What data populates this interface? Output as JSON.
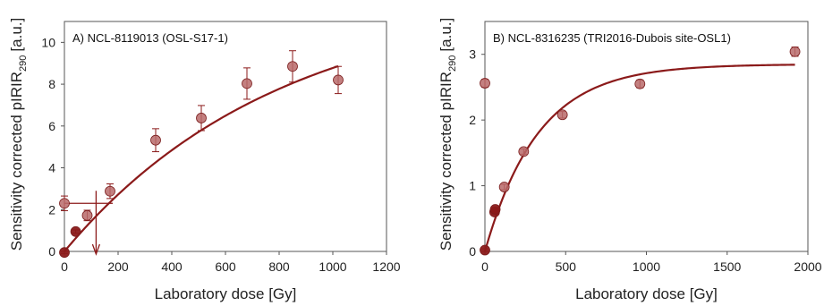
{
  "chart_data": [
    {
      "type": "scatter",
      "title": "A) NCL-8119013 (OSL-S17-1)",
      "xlabel": "Laboratory dose [Gy]",
      "ylabel_main": "Sensitivity corrected pIRIR",
      "ylabel_sub": "290",
      "ylabel_unit": "[a.u.]",
      "xlim": [
        0,
        1200
      ],
      "ylim": [
        0,
        11
      ],
      "xticks": [
        0,
        200,
        400,
        600,
        800,
        1000,
        1200
      ],
      "yticks": [
        0,
        2,
        4,
        6,
        8,
        10
      ],
      "grid": false,
      "marker_color": "#b86a6a",
      "curve_color": "#8b1a1a",
      "series": [
        {
          "points": [
            {
              "x": 0,
              "y": 2.3,
              "err": 0.35,
              "type": "natural"
            },
            {
              "x": 0,
              "y": -0.05,
              "err": 0.05,
              "type": "regenerated"
            },
            {
              "x": 42,
              "y": 0.95,
              "err": 0.08,
              "type": "regenerated"
            },
            {
              "x": 85,
              "y": 1.72,
              "err": 0.25,
              "type": "regenerated"
            },
            {
              "x": 170,
              "y": 2.88,
              "err": 0.35,
              "type": "regenerated"
            },
            {
              "x": 340,
              "y": 5.32,
              "err": 0.55,
              "type": "regenerated"
            },
            {
              "x": 510,
              "y": 6.38,
              "err": 0.6,
              "type": "regenerated"
            },
            {
              "x": 680,
              "y": 8.03,
              "err": 0.75,
              "type": "regenerated"
            },
            {
              "x": 850,
              "y": 8.85,
              "err": 0.75,
              "type": "regenerated"
            },
            {
              "x": 1020,
              "y": 8.2,
              "err": 0.65,
              "type": "regenerated"
            }
          ]
        }
      ],
      "fit": {
        "model": "saturating exponential",
        "x_max": 1020,
        "a": 12.3,
        "d0": 800
      },
      "projection": {
        "natural_y": 2.3,
        "de_x": 118,
        "x_start": 0,
        "x_end": 180
      },
      "error_bars": true
    },
    {
      "type": "scatter",
      "title": "B) NCL-8316235 (TRI2016-Dubois site-OSL1)",
      "xlabel": "Laboratory dose [Gy]",
      "ylabel_main": "Sensitivity corrected pIRIR",
      "ylabel_sub": "290",
      "ylabel_unit": "[a.u.]",
      "xlim": [
        0,
        2000
      ],
      "ylim": [
        0,
        3.5
      ],
      "xticks": [
        0,
        500,
        1000,
        1500,
        2000
      ],
      "yticks": [
        0,
        1,
        2,
        3
      ],
      "grid": false,
      "marker_color": "#b86a6a",
      "curve_color": "#8b1a1a",
      "series": [
        {
          "points": [
            {
              "x": 0,
              "y": 2.56,
              "err": 0.06,
              "type": "natural"
            },
            {
              "x": 0,
              "y": 0.02,
              "err": 0.02,
              "type": "regenerated"
            },
            {
              "x": 60,
              "y": 0.6,
              "err": 0.03,
              "type": "regenerated"
            },
            {
              "x": 64,
              "y": 0.64,
              "err": 0.03,
              "type": "regenerated"
            },
            {
              "x": 120,
              "y": 0.98,
              "err": 0.04,
              "type": "regenerated"
            },
            {
              "x": 240,
              "y": 1.52,
              "err": 0.04,
              "type": "regenerated"
            },
            {
              "x": 480,
              "y": 2.08,
              "err": 0.05,
              "type": "regenerated"
            },
            {
              "x": 960,
              "y": 2.55,
              "err": 0.06,
              "type": "regenerated"
            },
            {
              "x": 1920,
              "y": 3.04,
              "err": 0.07,
              "type": "regenerated"
            }
          ]
        }
      ],
      "fit": {
        "model": "saturating exponential",
        "x_max": 1920,
        "a": 2.85,
        "d0": 330
      },
      "error_bars": true
    }
  ]
}
